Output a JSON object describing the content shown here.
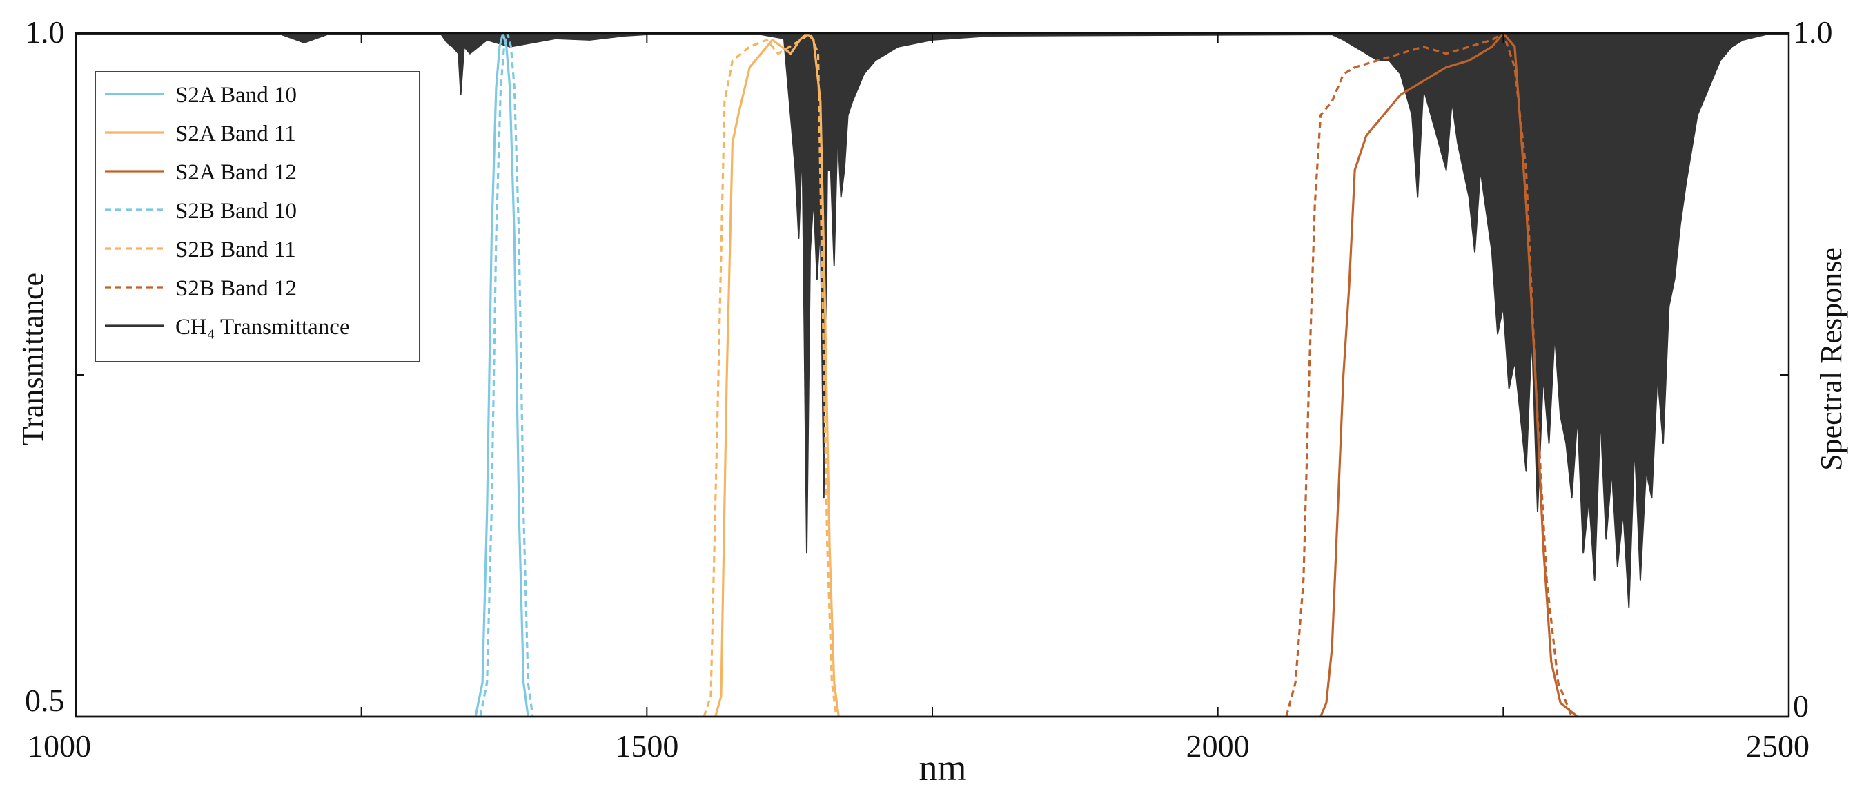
{
  "chart_data": {
    "type": "line",
    "xlabel": "nm",
    "ylabel_left": "Transmittance",
    "ylabel_right": "Spectral Response",
    "xlim": [
      1000,
      2500
    ],
    "ylim_left": [
      0.5,
      1.0
    ],
    "ylim_right": [
      0,
      1.0
    ],
    "x_ticks": [
      1000,
      1250,
      1500,
      1750,
      2000,
      2250,
      2500
    ],
    "x_tick_labels": [
      "1000",
      "",
      "1500",
      "",
      "2000",
      "",
      "2500"
    ],
    "y_left_tick_labels": [
      "0.5",
      "1.0"
    ],
    "y_right_tick_labels": [
      "0",
      "1.0"
    ],
    "grid": false,
    "legend_position": "top-left",
    "series": [
      {
        "name": "S2A Band 10",
        "color": "#7ec8e3",
        "dash": "solid",
        "axis": "right",
        "points": [
          [
            1350,
            0
          ],
          [
            1356,
            0.05
          ],
          [
            1360,
            0.3
          ],
          [
            1364,
            0.7
          ],
          [
            1368,
            0.92
          ],
          [
            1371,
            0.98
          ],
          [
            1374,
            1.0
          ],
          [
            1377,
            0.98
          ],
          [
            1380,
            0.92
          ],
          [
            1384,
            0.7
          ],
          [
            1388,
            0.3
          ],
          [
            1392,
            0.05
          ],
          [
            1396,
            0
          ]
        ]
      },
      {
        "name": "S2A Band 11",
        "color": "#f5b461",
        "dash": "solid",
        "axis": "right",
        "points": [
          [
            1560,
            0
          ],
          [
            1565,
            0.03
          ],
          [
            1570,
            0.5
          ],
          [
            1575,
            0.84
          ],
          [
            1580,
            0.88
          ],
          [
            1590,
            0.95
          ],
          [
            1600,
            0.97
          ],
          [
            1610,
            0.99
          ],
          [
            1618,
            0.98
          ],
          [
            1626,
            0.97
          ],
          [
            1634,
            0.99
          ],
          [
            1640,
            1.0
          ],
          [
            1646,
            0.99
          ],
          [
            1652,
            0.9
          ],
          [
            1656,
            0.6
          ],
          [
            1660,
            0.25
          ],
          [
            1664,
            0.05
          ],
          [
            1668,
            0
          ]
        ]
      },
      {
        "name": "S2A Band 12",
        "color": "#c0622b",
        "dash": "solid",
        "axis": "right",
        "points": [
          [
            2090,
            0
          ],
          [
            2095,
            0.02
          ],
          [
            2100,
            0.1
          ],
          [
            2105,
            0.3
          ],
          [
            2110,
            0.5
          ],
          [
            2115,
            0.63
          ],
          [
            2120,
            0.8
          ],
          [
            2130,
            0.85
          ],
          [
            2140,
            0.87
          ],
          [
            2160,
            0.91
          ],
          [
            2180,
            0.93
          ],
          [
            2200,
            0.95
          ],
          [
            2220,
            0.96
          ],
          [
            2240,
            0.98
          ],
          [
            2250,
            1.0
          ],
          [
            2260,
            0.98
          ],
          [
            2270,
            0.75
          ],
          [
            2278,
            0.5
          ],
          [
            2285,
            0.25
          ],
          [
            2292,
            0.08
          ],
          [
            2300,
            0.02
          ],
          [
            2315,
            0
          ]
        ]
      },
      {
        "name": "S2B Band 10",
        "color": "#7ec8e3",
        "dash": "dashed",
        "axis": "right",
        "points": [
          [
            1354,
            0
          ],
          [
            1360,
            0.05
          ],
          [
            1364,
            0.3
          ],
          [
            1368,
            0.7
          ],
          [
            1372,
            0.92
          ],
          [
            1375,
            0.98
          ],
          [
            1378,
            1.0
          ],
          [
            1381,
            0.98
          ],
          [
            1384,
            0.92
          ],
          [
            1388,
            0.7
          ],
          [
            1392,
            0.3
          ],
          [
            1396,
            0.05
          ],
          [
            1400,
            0
          ]
        ]
      },
      {
        "name": "S2B Band 11",
        "color": "#f5b461",
        "dash": "dashed",
        "axis": "right",
        "points": [
          [
            1550,
            0
          ],
          [
            1556,
            0.03
          ],
          [
            1562,
            0.45
          ],
          [
            1568,
            0.9
          ],
          [
            1575,
            0.96
          ],
          [
            1590,
            0.98
          ],
          [
            1605,
            0.99
          ],
          [
            1615,
            0.97
          ],
          [
            1625,
            0.98
          ],
          [
            1635,
            0.99
          ],
          [
            1643,
            1.0
          ],
          [
            1650,
            0.97
          ],
          [
            1654,
            0.6
          ],
          [
            1658,
            0.25
          ],
          [
            1662,
            0.05
          ],
          [
            1666,
            0
          ]
        ]
      },
      {
        "name": "S2B Band 12",
        "color": "#c0622b",
        "dash": "dashed",
        "axis": "right",
        "points": [
          [
            2060,
            0
          ],
          [
            2068,
            0.05
          ],
          [
            2075,
            0.2
          ],
          [
            2080,
            0.5
          ],
          [
            2085,
            0.75
          ],
          [
            2090,
            0.88
          ],
          [
            2100,
            0.9
          ],
          [
            2110,
            0.94
          ],
          [
            2120,
            0.95
          ],
          [
            2140,
            0.96
          ],
          [
            2160,
            0.97
          ],
          [
            2180,
            0.98
          ],
          [
            2200,
            0.97
          ],
          [
            2220,
            0.98
          ],
          [
            2240,
            0.99
          ],
          [
            2250,
            1.0
          ],
          [
            2260,
            0.95
          ],
          [
            2270,
            0.8
          ],
          [
            2278,
            0.5
          ],
          [
            2288,
            0.2
          ],
          [
            2298,
            0.05
          ],
          [
            2310,
            0
          ]
        ]
      },
      {
        "name": "CH₄ Transmittance",
        "color": "#333333",
        "dash": "solid",
        "axis": "left",
        "baseline": 0.998,
        "points": [
          [
            1000,
            0.999
          ],
          [
            1180,
            0.999
          ],
          [
            1190,
            0.996
          ],
          [
            1200,
            0.993
          ],
          [
            1210,
            0.996
          ],
          [
            1220,
            0.999
          ],
          [
            1320,
            0.999
          ],
          [
            1325,
            0.993
          ],
          [
            1330,
            0.99
          ],
          [
            1335,
            0.985
          ],
          [
            1337,
            0.955
          ],
          [
            1340,
            0.99
          ],
          [
            1345,
            0.985
          ],
          [
            1360,
            0.995
          ],
          [
            1380,
            0.99
          ],
          [
            1400,
            0.993
          ],
          [
            1420,
            0.996
          ],
          [
            1450,
            0.995
          ],
          [
            1480,
            0.998
          ],
          [
            1500,
            0.999
          ],
          [
            1600,
            0.999
          ],
          [
            1620,
            0.996
          ],
          [
            1630,
            0.9
          ],
          [
            1633,
            0.85
          ],
          [
            1636,
            0.92
          ],
          [
            1640,
            0.62
          ],
          [
            1643,
            0.84
          ],
          [
            1646,
            0.88
          ],
          [
            1649,
            0.82
          ],
          [
            1652,
            0.86
          ],
          [
            1655,
            0.66
          ],
          [
            1658,
            0.9
          ],
          [
            1661,
            0.9
          ],
          [
            1664,
            0.83
          ],
          [
            1667,
            0.93
          ],
          [
            1670,
            0.88
          ],
          [
            1673,
            0.9
          ],
          [
            1676,
            0.94
          ],
          [
            1680,
            0.95
          ],
          [
            1690,
            0.97
          ],
          [
            1700,
            0.98
          ],
          [
            1720,
            0.99
          ],
          [
            1750,
            0.995
          ],
          [
            1800,
            0.998
          ],
          [
            2100,
            0.999
          ],
          [
            2110,
            0.995
          ],
          [
            2120,
            0.99
          ],
          [
            2130,
            0.985
          ],
          [
            2140,
            0.98
          ],
          [
            2150,
            0.98
          ],
          [
            2160,
            0.97
          ],
          [
            2170,
            0.94
          ],
          [
            2175,
            0.88
          ],
          [
            2180,
            0.96
          ],
          [
            2190,
            0.93
          ],
          [
            2200,
            0.9
          ],
          [
            2205,
            0.95
          ],
          [
            2210,
            0.92
          ],
          [
            2220,
            0.88
          ],
          [
            2225,
            0.84
          ],
          [
            2230,
            0.9
          ],
          [
            2240,
            0.84
          ],
          [
            2245,
            0.78
          ],
          [
            2250,
            0.8
          ],
          [
            2255,
            0.74
          ],
          [
            2260,
            0.76
          ],
          [
            2265,
            0.72
          ],
          [
            2270,
            0.68
          ],
          [
            2275,
            0.78
          ],
          [
            2280,
            0.65
          ],
          [
            2285,
            0.75
          ],
          [
            2290,
            0.7
          ],
          [
            2295,
            0.78
          ],
          [
            2300,
            0.72
          ],
          [
            2305,
            0.7
          ],
          [
            2310,
            0.66
          ],
          [
            2315,
            0.72
          ],
          [
            2320,
            0.62
          ],
          [
            2325,
            0.66
          ],
          [
            2330,
            0.6
          ],
          [
            2335,
            0.72
          ],
          [
            2340,
            0.63
          ],
          [
            2345,
            0.68
          ],
          [
            2350,
            0.61
          ],
          [
            2355,
            0.65
          ],
          [
            2360,
            0.58
          ],
          [
            2365,
            0.7
          ],
          [
            2370,
            0.6
          ],
          [
            2375,
            0.68
          ],
          [
            2380,
            0.66
          ],
          [
            2385,
            0.75
          ],
          [
            2390,
            0.7
          ],
          [
            2395,
            0.8
          ],
          [
            2400,
            0.82
          ],
          [
            2405,
            0.86
          ],
          [
            2410,
            0.89
          ],
          [
            2420,
            0.94
          ],
          [
            2430,
            0.96
          ],
          [
            2440,
            0.98
          ],
          [
            2450,
            0.99
          ],
          [
            2460,
            0.995
          ],
          [
            2480,
            0.999
          ],
          [
            2500,
            0.999
          ]
        ]
      }
    ],
    "legend": [
      {
        "label": "S2A Band 10",
        "color": "#7ec8e3",
        "dash": "solid"
      },
      {
        "label": "S2A Band 11",
        "color": "#f5b461",
        "dash": "solid"
      },
      {
        "label": "S2A Band 12",
        "color": "#c0622b",
        "dash": "solid"
      },
      {
        "label": "S2B Band 10",
        "color": "#7ec8e3",
        "dash": "dashed"
      },
      {
        "label": "S2B Band 11",
        "color": "#f5b461",
        "dash": "dashed"
      },
      {
        "label": "S2B Band 12",
        "color": "#c0622b",
        "dash": "dashed"
      },
      {
        "label": "CH₄ Transmittance",
        "color": "#333333",
        "dash": "solid"
      }
    ]
  }
}
